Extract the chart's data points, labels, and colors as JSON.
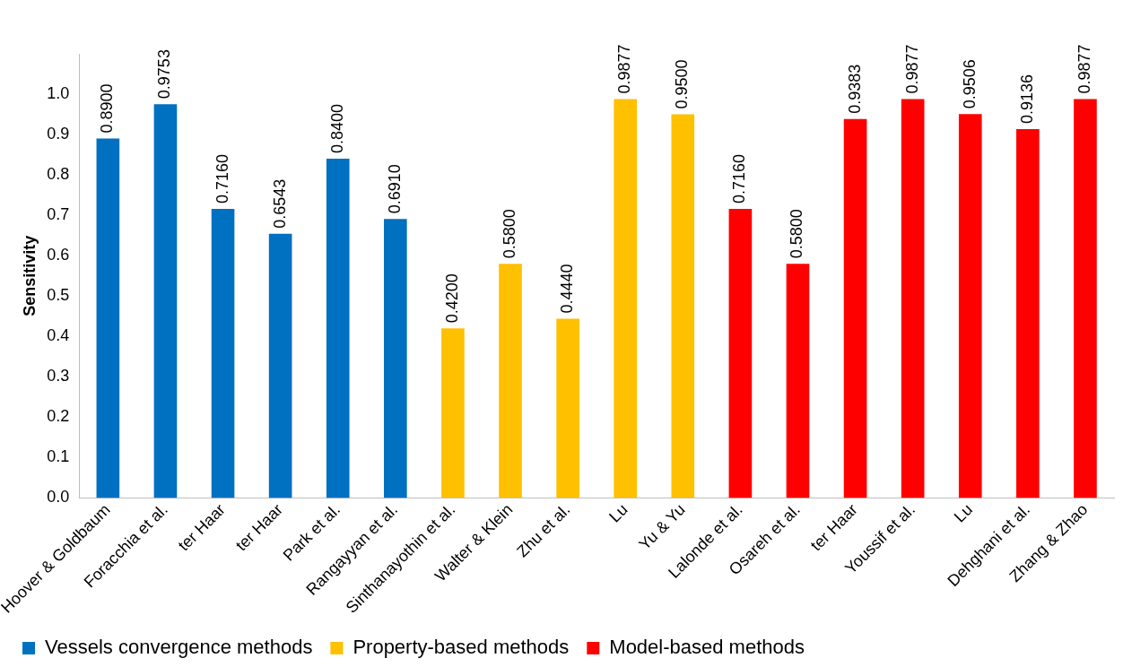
{
  "chart_data": {
    "type": "bar",
    "ylabel": "Sensitivity",
    "categories": [
      "Hoover & Goldbaum",
      "Foracchia et al.",
      "ter Haar",
      "ter Haar",
      "Park et al.",
      "Rangayyan et al.",
      "Sinthanayothin et al.",
      "Walter & Klein",
      "Zhu et al.",
      "Lu",
      "Yu & Yu",
      "Lalonde et al.",
      "Osareh et al.",
      "ter Haar",
      "Youssif et al.",
      "Lu",
      "Dehghani et al.",
      "Zhang & Zhao"
    ],
    "series": [
      {
        "name": "Vessels convergence methods",
        "color": "#0070c0",
        "values": [
          0.89,
          0.9753,
          0.716,
          0.6543,
          0.84,
          0.691,
          null,
          null,
          null,
          null,
          null,
          null,
          null,
          null,
          null,
          null,
          null,
          null
        ],
        "value_labels": [
          "0.8900",
          "0.9753",
          "0.7160",
          "0.6543",
          "0.8400",
          "0.6910",
          null,
          null,
          null,
          null,
          null,
          null,
          null,
          null,
          null,
          null,
          null,
          null
        ]
      },
      {
        "name": "Property-based methods",
        "color": "#ffc000",
        "values": [
          null,
          null,
          null,
          null,
          null,
          null,
          0.42,
          0.58,
          0.444,
          0.9877,
          0.95,
          null,
          null,
          null,
          null,
          null,
          null,
          null
        ],
        "value_labels": [
          null,
          null,
          null,
          null,
          null,
          null,
          "0.4200",
          "0.5800",
          "0.4440",
          "0.9877",
          "0.9500",
          null,
          null,
          null,
          null,
          null,
          null,
          null
        ]
      },
      {
        "name": "Model-based methods",
        "color": "#ff0000",
        "values": [
          null,
          null,
          null,
          null,
          null,
          null,
          null,
          null,
          null,
          null,
          null,
          0.716,
          0.58,
          0.9383,
          0.9877,
          0.9506,
          0.9136,
          0.9877
        ],
        "value_labels": [
          null,
          null,
          null,
          null,
          null,
          null,
          null,
          null,
          null,
          null,
          null,
          "0.7160",
          "0.5800",
          "0.9383",
          "0.9877",
          "0.9506",
          "0.9136",
          "0.9877"
        ]
      }
    ],
    "ylim": [
      0,
      1.1
    ],
    "yticks": [
      {
        "value": 0,
        "label": "0.0"
      },
      {
        "value": 0.1,
        "label": "0.1"
      },
      {
        "value": 0.2,
        "label": "0.2"
      },
      {
        "value": 0.3,
        "label": "0.3"
      },
      {
        "value": 0.4,
        "label": "0.4"
      },
      {
        "value": 0.5,
        "label": "0.5"
      },
      {
        "value": 0.6,
        "label": "0.6"
      },
      {
        "value": 0.7,
        "label": "0.7"
      },
      {
        "value": 0.8,
        "label": "0.8"
      },
      {
        "value": 0.9,
        "label": "0.9"
      },
      {
        "value": 1.0,
        "label": "1.0"
      }
    ],
    "grid": false,
    "legend": "bottom"
  }
}
